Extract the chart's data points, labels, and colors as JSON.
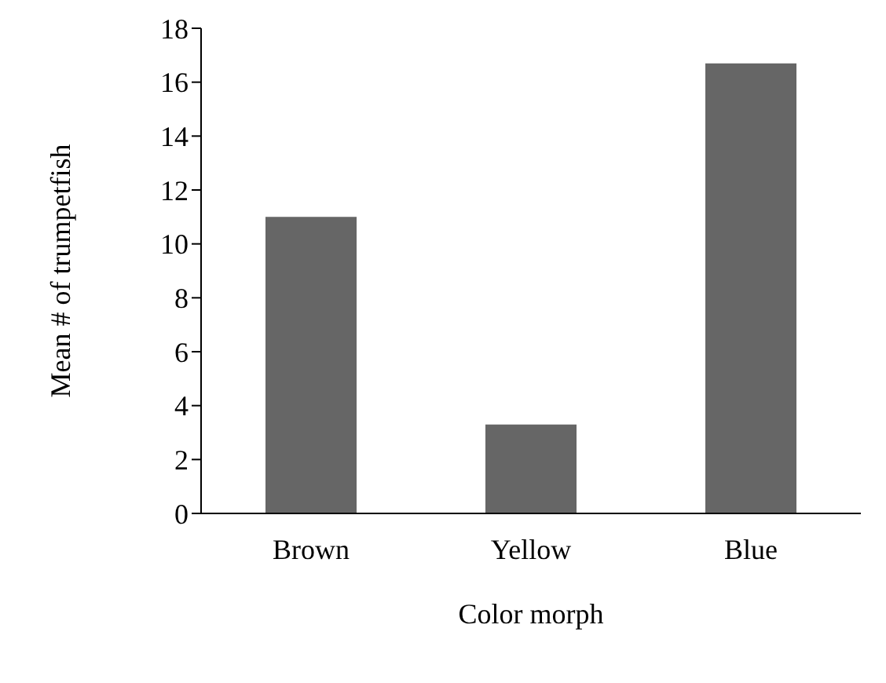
{
  "chart_data": {
    "type": "bar",
    "xlabel": "Color morph",
    "ylabel": "Mean # of trumpetfish",
    "categories": [
      "Brown",
      "Yellow",
      "Blue"
    ],
    "values": [
      11,
      3.3,
      16.7
    ],
    "color": "#666666",
    "ylim": [
      0,
      18
    ],
    "yticks": [
      0,
      2,
      4,
      6,
      8,
      10,
      12,
      14,
      16,
      18
    ],
    "grid": false,
    "legend": false
  }
}
